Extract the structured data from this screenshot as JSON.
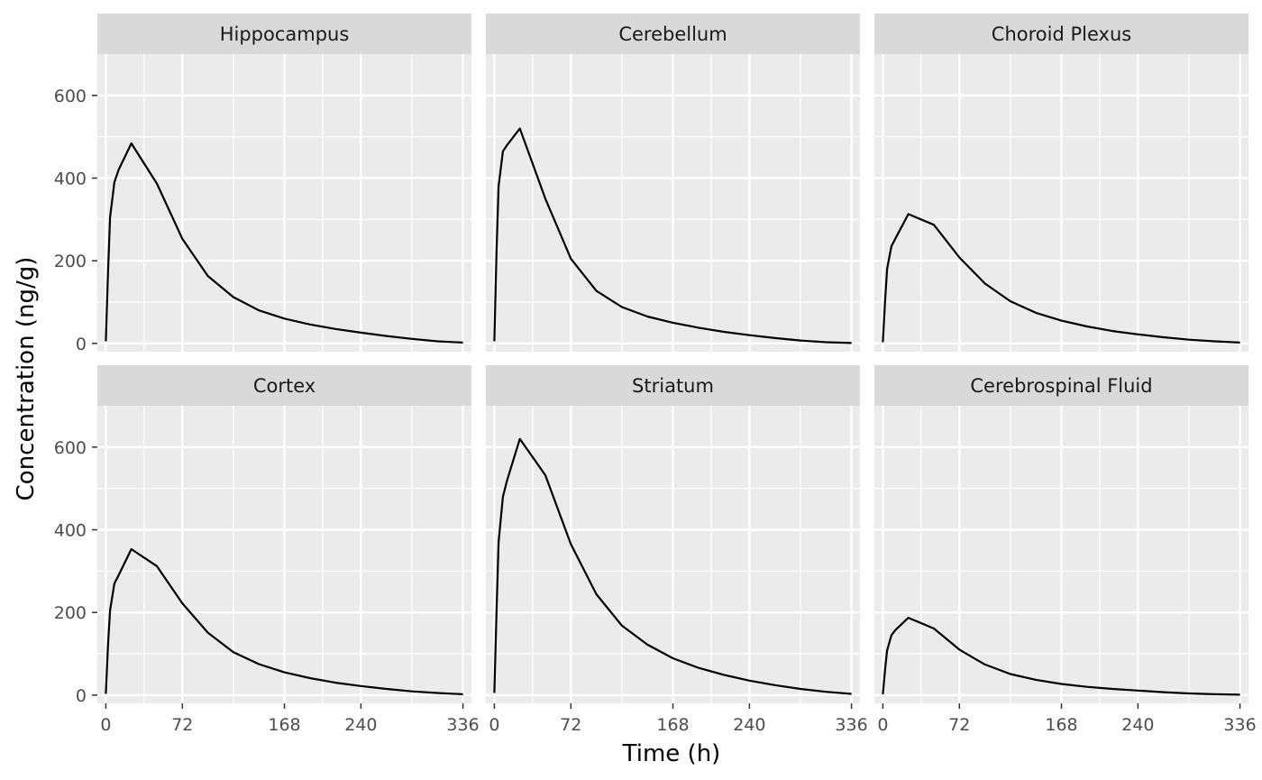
{
  "chart_data": {
    "type": "line",
    "layout": "facet-grid-2x3",
    "xlabel": "Time (h)",
    "ylabel": "Concentration (ng/g)",
    "xlim": [
      -8,
      344
    ],
    "ylim": [
      -20,
      700
    ],
    "xticks": [
      0,
      72,
      168,
      240,
      336
    ],
    "yticks": [
      0,
      200,
      400,
      600
    ],
    "x": [
      0,
      2,
      4,
      8,
      12,
      24,
      48,
      72,
      96,
      120,
      144,
      168,
      192,
      216,
      240,
      264,
      288,
      312,
      336
    ],
    "colors": {
      "panel_bg": "#EBEBEB",
      "strip_bg": "#D9D9D9",
      "grid": "#FFFFFF",
      "line": "#000000",
      "tick_mark": "#333333"
    },
    "panels": [
      {
        "name": "Hippocampus",
        "values": [
          5,
          170,
          305,
          390,
          420,
          484,
          387,
          253,
          163,
          112,
          80,
          60,
          46,
          35,
          26,
          18,
          11,
          5,
          2
        ]
      },
      {
        "name": "Cerebellum",
        "values": [
          5,
          220,
          380,
          465,
          480,
          520,
          350,
          205,
          127,
          88,
          65,
          50,
          38,
          28,
          20,
          13,
          7,
          3,
          1
        ]
      },
      {
        "name": "Choroid Plexus",
        "values": [
          3,
          100,
          180,
          235,
          255,
          313,
          287,
          208,
          145,
          102,
          74,
          55,
          41,
          30,
          22,
          15,
          9,
          5,
          2
        ]
      },
      {
        "name": "Cortex",
        "values": [
          3,
          120,
          205,
          270,
          290,
          353,
          312,
          222,
          151,
          104,
          75,
          55,
          41,
          30,
          22,
          15,
          9,
          5,
          2
        ]
      },
      {
        "name": "Striatum",
        "values": [
          5,
          200,
          370,
          480,
          520,
          620,
          532,
          365,
          244,
          168,
          122,
          89,
          66,
          49,
          35,
          24,
          15,
          8,
          3
        ]
      },
      {
        "name": "Cerebrospinal Fluid",
        "values": [
          2,
          60,
          108,
          145,
          158,
          187,
          161,
          110,
          74,
          51,
          37,
          27,
          20,
          15,
          11,
          7,
          4,
          2,
          1
        ]
      }
    ]
  }
}
